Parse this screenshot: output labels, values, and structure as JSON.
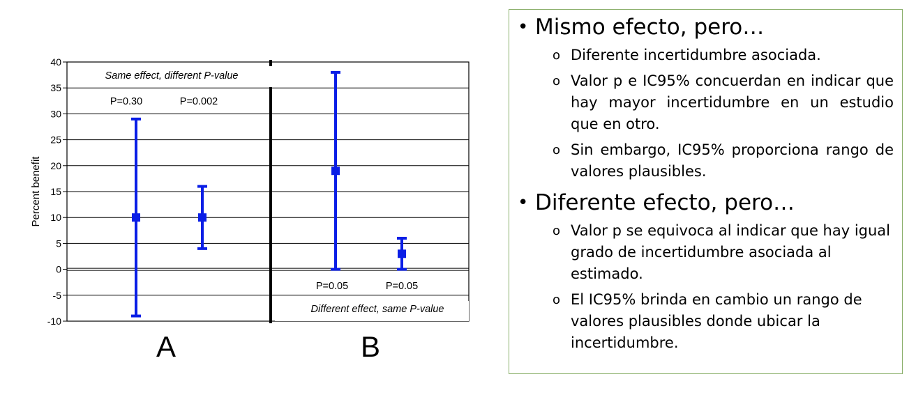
{
  "chart_data": {
    "type": "error_bar",
    "ylabel": "Percent benefit",
    "ylim": [
      -10,
      40
    ],
    "yticks": [
      40,
      35,
      30,
      25,
      20,
      15,
      10,
      5,
      0,
      -5,
      -10
    ],
    "panels": [
      {
        "label": "A",
        "caption": "Same effect, different P-value",
        "points": [
          {
            "p_label": "P=0.30",
            "estimate": 10,
            "lower": -9,
            "upper": 29
          },
          {
            "p_label": "P=0.002",
            "estimate": 10,
            "lower": 4,
            "upper": 16
          }
        ]
      },
      {
        "label": "B",
        "caption": "Different effect, same P-value",
        "points": [
          {
            "p_label": "P=0.05",
            "estimate": 19,
            "lower": 0,
            "upper": 38
          },
          {
            "p_label": "P=0.05",
            "estimate": 3,
            "lower": 0,
            "upper": 6
          }
        ]
      }
    ],
    "colors": {
      "marks": "#0a1ee6",
      "grid": "#000000"
    }
  },
  "notes": {
    "sections": [
      {
        "title": "Mismo efecto, pero…",
        "items": [
          "Diferente incertidumbre asociada.",
          "Valor p e IC95% concuerdan en indicar que hay mayor incertidumbre en un estudio que en otro.",
          "Sin embargo, IC95% proporciona rango de valores plausibles."
        ]
      },
      {
        "title": "Diferente efecto, pero…",
        "items": [
          "Valor p se equivoca al indicar que hay igual grado de incertidumbre asociada al estimado.",
          "El IC95% brinda en cambio un rango de valores plausibles donde ubicar la incertidumbre."
        ]
      }
    ]
  }
}
